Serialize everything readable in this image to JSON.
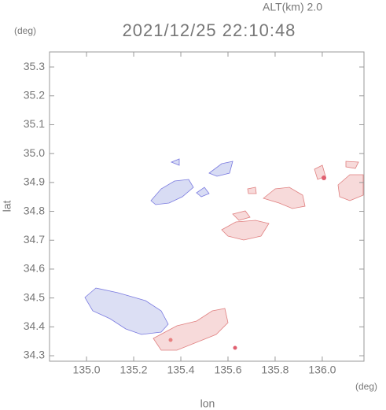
{
  "chart_data": {
    "type": "map",
    "title": "2021/12/25 22:10:48",
    "altitude": "ALT(km) 2.0",
    "xlabel": "lon",
    "ylabel": "lat",
    "x_unit": "(deg)",
    "y_unit": "(deg)",
    "xlim": [
      134.843,
      136.177
    ],
    "ylim": [
      34.281,
      35.352
    ],
    "xticks": [
      {
        "value": 135.0,
        "label": "135.0"
      },
      135.2,
      135.4,
      135.6,
      135.8,
      {
        "value": 136.0,
        "label": "136.0"
      }
    ],
    "yticks": [
      34.3,
      34.4,
      34.5,
      34.6,
      34.7,
      34.8,
      34.9,
      {
        "value": 35.0,
        "label": "35.0"
      },
      35.1,
      35.2,
      35.3
    ]
  }
}
